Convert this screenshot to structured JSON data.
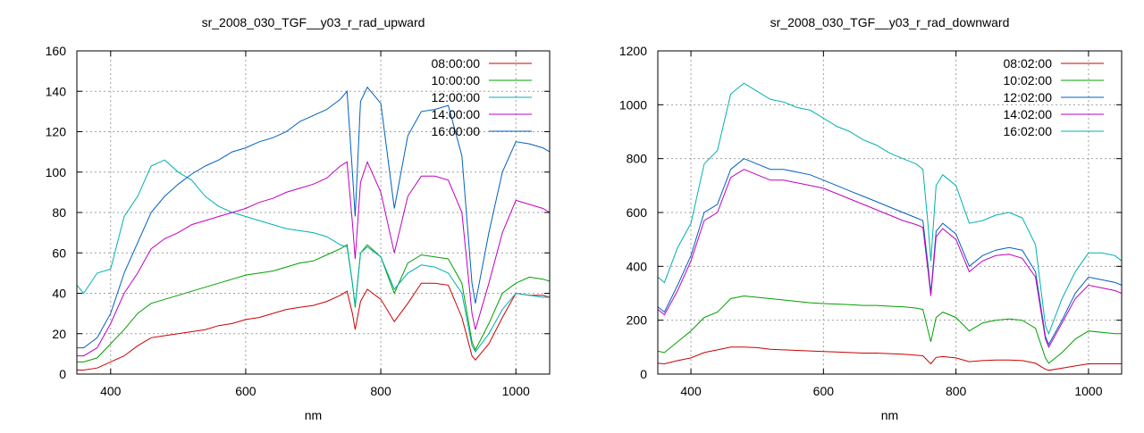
{
  "chart_data": [
    {
      "type": "line",
      "title": "sr_2008_030_TGF__y03_r_rad_upward",
      "xlabel": "nm",
      "ylabel": "",
      "xlim": [
        350,
        1050
      ],
      "ylim": [
        0,
        160
      ],
      "xticks": [
        400,
        600,
        800,
        1000
      ],
      "yticks": [
        0,
        20,
        40,
        60,
        80,
        100,
        120,
        140,
        160
      ],
      "grid": true,
      "legend_position": "top-right",
      "series": [
        {
          "name": "08:00:00",
          "color": "#cc0000",
          "x": [
            350,
            360,
            380,
            400,
            420,
            440,
            460,
            480,
            500,
            520,
            540,
            560,
            580,
            600,
            620,
            640,
            660,
            680,
            700,
            720,
            740,
            750,
            758,
            762,
            770,
            780,
            800,
            820,
            840,
            860,
            880,
            900,
            920,
            935,
            940,
            960,
            980,
            1000,
            1020,
            1040,
            1050
          ],
          "y": [
            2,
            2,
            3,
            6,
            9,
            14,
            18,
            19,
            20,
            21,
            22,
            24,
            25,
            27,
            28,
            30,
            32,
            33,
            34,
            36,
            39,
            41,
            30,
            22,
            36,
            42,
            37,
            26,
            35,
            45,
            45,
            44,
            28,
            9,
            7,
            15,
            28,
            40,
            39,
            39,
            38
          ]
        },
        {
          "name": "10:00:00",
          "color": "#00a000",
          "x": [
            350,
            360,
            380,
            400,
            420,
            440,
            460,
            480,
            500,
            520,
            540,
            560,
            580,
            600,
            620,
            640,
            660,
            680,
            700,
            720,
            740,
            750,
            758,
            762,
            770,
            780,
            800,
            820,
            840,
            860,
            880,
            900,
            920,
            935,
            940,
            960,
            980,
            1000,
            1020,
            1040,
            1050
          ],
          "y": [
            6,
            6,
            8,
            15,
            22,
            30,
            35,
            37,
            39,
            41,
            43,
            45,
            47,
            49,
            50,
            51,
            53,
            55,
            56,
            59,
            62,
            64,
            45,
            33,
            60,
            64,
            58,
            40,
            55,
            59,
            58,
            57,
            45,
            16,
            12,
            25,
            40,
            45,
            48,
            47,
            46
          ]
        },
        {
          "name": "12:00:00",
          "color": "#00b0b0",
          "x": [
            350,
            360,
            380,
            400,
            420,
            440,
            460,
            480,
            500,
            520,
            540,
            560,
            580,
            600,
            620,
            640,
            660,
            680,
            700,
            720,
            740,
            750,
            758,
            762,
            770,
            780,
            800,
            820,
            840,
            860,
            880,
            900,
            920,
            935,
            940,
            960,
            980,
            1000,
            1020,
            1040,
            1050
          ],
          "y": [
            44,
            40,
            50,
            52,
            78,
            88,
            103,
            106,
            100,
            96,
            88,
            83,
            80,
            78,
            76,
            74,
            72,
            71,
            70,
            68,
            64,
            63,
            45,
            34,
            60,
            63,
            58,
            42,
            50,
            54,
            53,
            50,
            40,
            14,
            11,
            20,
            32,
            40,
            39,
            38,
            38
          ]
        },
        {
          "name": "14:00:00",
          "color": "#c000c0",
          "x": [
            350,
            360,
            380,
            400,
            420,
            440,
            460,
            480,
            500,
            520,
            540,
            560,
            580,
            600,
            620,
            640,
            660,
            680,
            700,
            720,
            740,
            750,
            758,
            762,
            770,
            780,
            800,
            820,
            840,
            860,
            880,
            900,
            920,
            935,
            940,
            960,
            980,
            1000,
            1020,
            1040,
            1050
          ],
          "y": [
            9,
            9,
            13,
            25,
            40,
            50,
            62,
            67,
            70,
            74,
            76,
            78,
            80,
            82,
            85,
            87,
            90,
            92,
            94,
            97,
            103,
            105,
            75,
            57,
            95,
            105,
            90,
            60,
            88,
            98,
            98,
            96,
            80,
            30,
            22,
            45,
            70,
            86,
            84,
            82,
            80
          ]
        },
        {
          "name": "16:00:00",
          "color": "#0060c0",
          "x": [
            350,
            360,
            380,
            400,
            420,
            440,
            460,
            480,
            500,
            520,
            540,
            560,
            580,
            600,
            620,
            640,
            660,
            680,
            700,
            720,
            740,
            750,
            758,
            762,
            770,
            780,
            800,
            820,
            840,
            860,
            880,
            900,
            920,
            935,
            940,
            960,
            980,
            1000,
            1020,
            1040,
            1050
          ],
          "y": [
            13,
            13,
            18,
            30,
            50,
            65,
            80,
            88,
            94,
            99,
            103,
            106,
            110,
            112,
            115,
            117,
            120,
            125,
            128,
            131,
            136,
            140,
            100,
            78,
            135,
            142,
            134,
            82,
            118,
            130,
            131,
            133,
            108,
            45,
            35,
            70,
            100,
            115,
            114,
            112,
            110
          ]
        }
      ]
    },
    {
      "type": "line",
      "title": "sr_2008_030_TGF__y03_r_rad_downward",
      "xlabel": "nm",
      "ylabel": "",
      "xlim": [
        350,
        1050
      ],
      "ylim": [
        0,
        1200
      ],
      "xticks": [
        400,
        600,
        800,
        1000
      ],
      "yticks": [
        0,
        200,
        400,
        600,
        800,
        1000,
        1200
      ],
      "grid": true,
      "legend_position": "top-right",
      "series": [
        {
          "name": "08:02:00",
          "color": "#cc0000",
          "x": [
            350,
            360,
            380,
            400,
            420,
            440,
            460,
            480,
            500,
            520,
            540,
            560,
            580,
            600,
            620,
            640,
            660,
            680,
            700,
            720,
            740,
            750,
            758,
            762,
            770,
            780,
            800,
            820,
            840,
            860,
            880,
            900,
            920,
            935,
            940,
            960,
            980,
            1000,
            1020,
            1040,
            1050
          ],
          "y": [
            40,
            38,
            50,
            60,
            80,
            90,
            100,
            100,
            98,
            92,
            90,
            88,
            86,
            84,
            82,
            80,
            78,
            78,
            76,
            74,
            70,
            68,
            48,
            38,
            62,
            65,
            60,
            46,
            50,
            52,
            52,
            50,
            40,
            18,
            14,
            22,
            30,
            38,
            38,
            38,
            38
          ]
        },
        {
          "name": "10:02:00",
          "color": "#00a000",
          "x": [
            350,
            360,
            380,
            400,
            420,
            440,
            460,
            480,
            500,
            520,
            540,
            560,
            580,
            600,
            620,
            640,
            660,
            680,
            700,
            720,
            740,
            750,
            758,
            762,
            770,
            780,
            800,
            820,
            840,
            860,
            880,
            900,
            920,
            935,
            940,
            960,
            980,
            1000,
            1020,
            1040,
            1050
          ],
          "y": [
            85,
            80,
            120,
            160,
            210,
            230,
            280,
            290,
            285,
            280,
            275,
            270,
            265,
            262,
            260,
            258,
            255,
            255,
            252,
            250,
            245,
            240,
            160,
            120,
            210,
            230,
            210,
            160,
            190,
            200,
            205,
            200,
            170,
            60,
            40,
            80,
            130,
            160,
            155,
            150,
            150
          ]
        },
        {
          "name": "12:02:00",
          "color": "#0060c0",
          "x": [
            350,
            360,
            380,
            400,
            420,
            440,
            460,
            480,
            500,
            520,
            540,
            560,
            580,
            600,
            620,
            640,
            660,
            680,
            700,
            720,
            740,
            750,
            758,
            762,
            770,
            780,
            800,
            820,
            840,
            860,
            880,
            900,
            920,
            935,
            940,
            960,
            980,
            1000,
            1020,
            1040,
            1050
          ],
          "y": [
            250,
            230,
            330,
            440,
            600,
            630,
            760,
            800,
            780,
            760,
            760,
            750,
            740,
            720,
            700,
            680,
            660,
            640,
            620,
            600,
            580,
            570,
            400,
            300,
            530,
            560,
            520,
            400,
            440,
            460,
            470,
            460,
            380,
            140,
            110,
            200,
            300,
            360,
            350,
            340,
            330
          ]
        },
        {
          "name": "14:02:00",
          "color": "#c000c0",
          "x": [
            350,
            360,
            380,
            400,
            420,
            440,
            460,
            480,
            500,
            520,
            540,
            560,
            580,
            600,
            620,
            640,
            660,
            680,
            700,
            720,
            740,
            750,
            758,
            762,
            770,
            780,
            800,
            820,
            840,
            860,
            880,
            900,
            920,
            935,
            940,
            960,
            980,
            1000,
            1020,
            1040,
            1050
          ],
          "y": [
            240,
            220,
            310,
            420,
            570,
            600,
            730,
            760,
            740,
            720,
            720,
            710,
            700,
            690,
            670,
            650,
            630,
            610,
            590,
            570,
            555,
            545,
            380,
            290,
            510,
            540,
            500,
            380,
            420,
            440,
            445,
            430,
            360,
            130,
            100,
            190,
            280,
            330,
            320,
            310,
            300
          ]
        },
        {
          "name": "16:02:00",
          "color": "#00b0b0",
          "x": [
            350,
            360,
            380,
            400,
            420,
            440,
            460,
            480,
            500,
            520,
            540,
            560,
            580,
            600,
            620,
            640,
            660,
            680,
            700,
            720,
            740,
            750,
            758,
            762,
            770,
            780,
            800,
            820,
            840,
            860,
            880,
            900,
            920,
            935,
            940,
            960,
            980,
            1000,
            1020,
            1040,
            1050
          ],
          "y": [
            360,
            340,
            470,
            560,
            780,
            830,
            1040,
            1080,
            1050,
            1020,
            1010,
            990,
            980,
            950,
            920,
            900,
            870,
            850,
            820,
            800,
            780,
            760,
            550,
            420,
            700,
            740,
            700,
            560,
            570,
            590,
            600,
            580,
            480,
            180,
            150,
            280,
            380,
            450,
            450,
            440,
            420
          ]
        }
      ]
    }
  ]
}
